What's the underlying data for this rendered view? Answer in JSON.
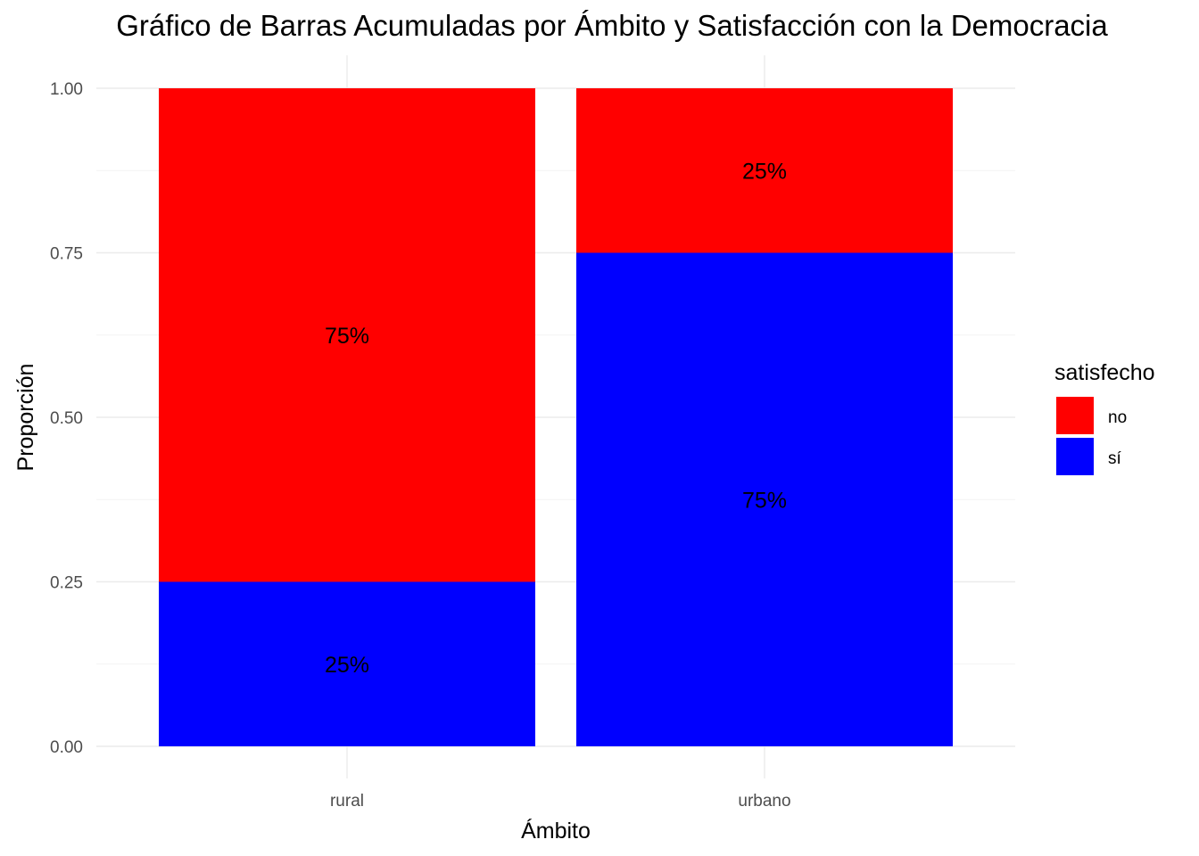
{
  "chart_data": {
    "type": "bar",
    "stacked": true,
    "title": "Gráfico de Barras Acumuladas por Ámbito y Satisfacción con la Democracia",
    "xlabel": "Ámbito",
    "ylabel": "Proporción",
    "categories": [
      "rural",
      "urbano"
    ],
    "ylim": [
      0,
      1
    ],
    "yticks": [
      "0.00",
      "0.25",
      "0.50",
      "0.75",
      "1.00"
    ],
    "ytick_values": [
      0,
      0.25,
      0.5,
      0.75,
      1
    ],
    "grid": true,
    "legend": {
      "title": "satisfecho",
      "placement": "right"
    },
    "series": [
      {
        "name": "sí",
        "color": "#0000FF",
        "values": [
          0.25,
          0.75
        ],
        "labels": [
          "25%",
          "75%"
        ]
      },
      {
        "name": "no",
        "color": "#FF0000",
        "values": [
          0.75,
          0.25
        ],
        "labels": [
          "75%",
          "25%"
        ]
      }
    ],
    "legend_order": [
      "no",
      "sí"
    ]
  }
}
